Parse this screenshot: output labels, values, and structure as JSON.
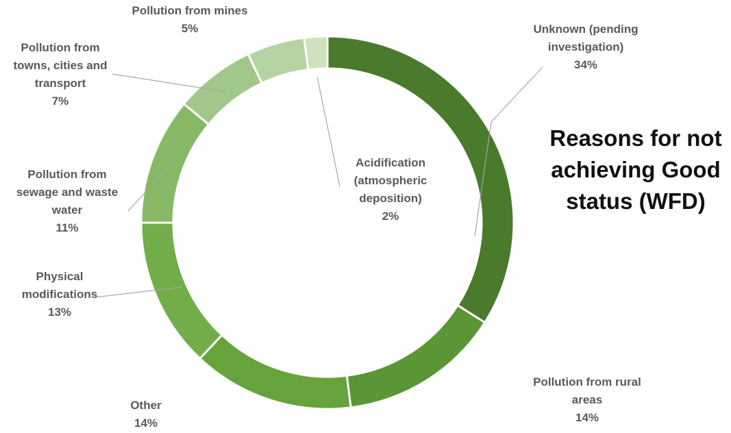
{
  "chart_data": {
    "type": "pie",
    "variant": "donut",
    "title_lines": [
      "Reasons for not",
      "achieving Good",
      "status (WFD)"
    ],
    "slices": [
      {
        "label_lines": [
          "Unknown (pending",
          "investigation)"
        ],
        "pct_text": "34%",
        "value": 34,
        "color": "#4a7a2c"
      },
      {
        "label_lines": [
          "Pollution from rural",
          "areas"
        ],
        "pct_text": "14%",
        "value": 14,
        "color": "#5b9636"
      },
      {
        "label_lines": [
          "Other"
        ],
        "pct_text": "14%",
        "value": 14,
        "color": "#66a33d"
      },
      {
        "label_lines": [
          "Physical",
          "modifications"
        ],
        "pct_text": "13%",
        "value": 13,
        "color": "#72ad4a"
      },
      {
        "label_lines": [
          "Pollution from",
          "sewage and waste",
          "water"
        ],
        "pct_text": "11%",
        "value": 11,
        "color": "#86b865"
      },
      {
        "label_lines": [
          "Pollution from",
          "towns, cities and",
          "transport"
        ],
        "pct_text": "7%",
        "value": 7,
        "color": "#a1c78a"
      },
      {
        "label_lines": [
          "Pollution from mines"
        ],
        "pct_text": "5%",
        "value": 5,
        "color": "#b6d4a3"
      },
      {
        "label_lines": [
          "Acidification",
          "(atmospheric",
          "deposition)"
        ],
        "pct_text": "2%",
        "value": 2,
        "color": "#cde2bf"
      }
    ]
  }
}
